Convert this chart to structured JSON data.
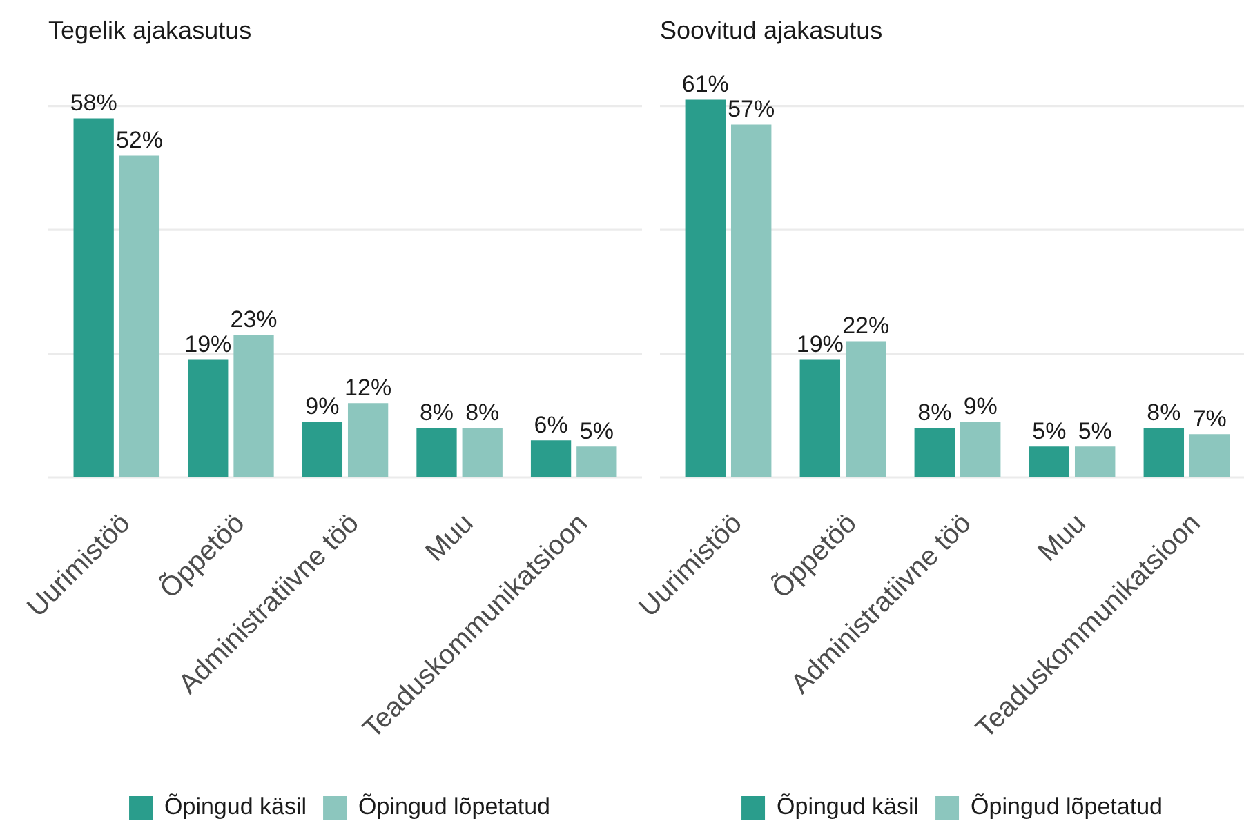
{
  "chart_data": [
    {
      "type": "bar",
      "title": "Tegelik ajakasutus",
      "categories": [
        "Uurimistöö",
        "Õppetöö",
        "Administratiivne töö",
        "Muu",
        "Teaduskommunikatsioon"
      ],
      "series": [
        {
          "name": "Õpingud käsil",
          "color": "#2a9d8c",
          "values": [
            58,
            19,
            9,
            8,
            6
          ],
          "value_labels": [
            "58%",
            "19%",
            "9%",
            "8%",
            "6%"
          ]
        },
        {
          "name": "Õpingud lõpetatud",
          "color": "#8cc6be",
          "values": [
            52,
            23,
            12,
            8,
            5
          ],
          "value_labels": [
            "52%",
            "23%",
            "12%",
            "8%",
            "5%"
          ]
        }
      ],
      "ylim": [
        0,
        60
      ],
      "yticks": [
        0,
        20,
        40,
        60
      ],
      "tick_labels": "x",
      "grid": "y",
      "legend": "bottom"
    },
    {
      "type": "bar",
      "title": "Soovitud ajakasutus",
      "categories": [
        "Uurimistöö",
        "Õppetöö",
        "Administratiivne töö",
        "Muu",
        "Teaduskommunikatsioon"
      ],
      "series": [
        {
          "name": "Õpingud käsil",
          "color": "#2a9d8c",
          "values": [
            61,
            19,
            8,
            5,
            8
          ],
          "value_labels": [
            "61%",
            "19%",
            "8%",
            "5%",
            "8%"
          ]
        },
        {
          "name": "Õpingud lõpetatud",
          "color": "#8cc6be",
          "values": [
            57,
            22,
            9,
            5,
            7
          ],
          "value_labels": [
            "57%",
            "22%",
            "9%",
            "5%",
            "7%"
          ]
        }
      ],
      "yticks": [
        0,
        20,
        40,
        60
      ],
      "tick_labels": "x",
      "grid": "y",
      "legend": "bottom"
    }
  ]
}
